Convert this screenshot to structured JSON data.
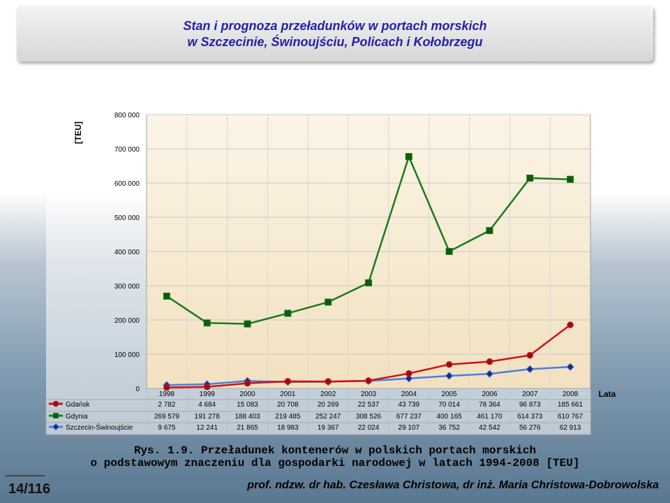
{
  "header": {
    "title_line1": "Stan i prognoza przeładunków w portach morskich",
    "title_line2": "w Szczecinie, Świnoujściu, Policach i Kołobrzegu"
  },
  "caption": {
    "line1": "Rys. 1.9. Przeładunek kontenerów w polskich portach morskich",
    "line2": "o podstawowym znaczeniu dla gospodarki narodowej w latach 1994-2008 [TEU]"
  },
  "footer": {
    "page_number": "14/116",
    "authors": "prof. ndzw. dr hab. Czesława Christowa, dr inż. Maria Christowa-Dobrowolska"
  },
  "chart_data": {
    "type": "line",
    "ylabel": "[TEU]",
    "xlabel": "Lata",
    "ylim": [
      0,
      800000
    ],
    "yticks": [
      0,
      100000,
      200000,
      300000,
      400000,
      500000,
      600000,
      700000,
      800000
    ],
    "ytick_labels": [
      "0",
      "100 000",
      "200 000",
      "300 000",
      "400 000",
      "500 000",
      "600 000",
      "700 000",
      "800 000"
    ],
    "categories": [
      "1998",
      "1999",
      "2000",
      "2001",
      "2002",
      "2003",
      "2004",
      "2005",
      "2006",
      "2007",
      "2008"
    ],
    "grid": true,
    "legend": "data-table-left",
    "series": [
      {
        "name": "Gdańsk",
        "color": "#cc1111",
        "marker": "circle",
        "marker_fill": "#8b1020",
        "values": [
          2782,
          4684,
          15083,
          20708,
          20269,
          22537,
          43739,
          70014,
          78364,
          96873,
          185661
        ],
        "labels": [
          "2 782",
          "4 684",
          "15 083",
          "20 708",
          "20 269",
          "22 537",
          "43 739",
          "70 014",
          "78 364",
          "96 873",
          "185 661"
        ]
      },
      {
        "name": "Gdynia",
        "color": "#1a7a1a",
        "marker": "square",
        "marker_fill": "#0f5a0f",
        "values": [
          269579,
          191278,
          188403,
          219485,
          252247,
          308526,
          677237,
          400165,
          461170,
          614373,
          610767
        ],
        "labels": [
          "269 579",
          "191 278",
          "188 403",
          "219 485",
          "252 247",
          "308 526",
          "677 237",
          "400 165",
          "461 170",
          "614 373",
          "610 767"
        ]
      },
      {
        "name": "Szczecin-Świnoujście",
        "color": "#4a7ce0",
        "marker": "diamond",
        "marker_fill": "#1a2a88",
        "values": [
          9675,
          12241,
          21865,
          18983,
          19367,
          22024,
          29107,
          36752,
          42542,
          56276,
          62913
        ],
        "labels": [
          "9 675",
          "12 241",
          "21 865",
          "18 983",
          "19 367",
          "22 024",
          "29 107",
          "36 752",
          "42 542",
          "56 276",
          "62 913"
        ]
      }
    ]
  }
}
